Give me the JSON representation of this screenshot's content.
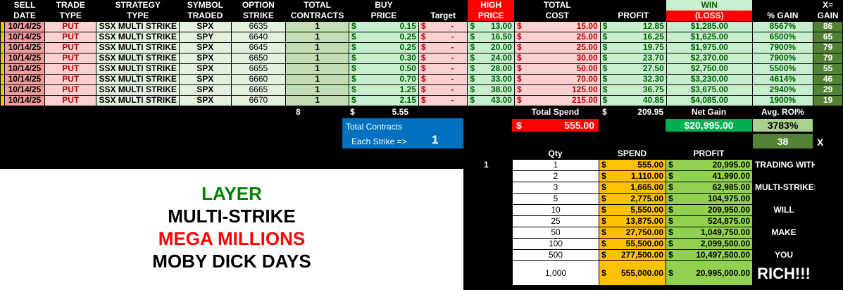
{
  "headers": {
    "sell_date": [
      "SELL",
      "DATE"
    ],
    "trade_type": [
      "TRADE",
      "TYPE"
    ],
    "strategy_type": [
      "STRATEGY",
      "TYPE"
    ],
    "symbol": [
      "SYMBOL",
      "TRADED"
    ],
    "strike": [
      "OPTION",
      "STRIKE"
    ],
    "contracts": [
      "TOTAL",
      "CONTRACTS"
    ],
    "buy_price": [
      "BUY",
      "PRICE"
    ],
    "target": "Target",
    "high_price": [
      "HIGH",
      "PRICE"
    ],
    "total_cost": [
      "TOTAL",
      "COST"
    ],
    "profit": "PROFIT",
    "win": "WIN",
    "loss": "(LOSS)",
    "pct_gain": "% GAIN",
    "x_gain": [
      "X=",
      "GAIN"
    ]
  },
  "rows": [
    {
      "date": "10/14/25",
      "type": "PUT",
      "strategy": "SSX MULTI STRIKE",
      "symbol": "SPX",
      "strike": "6635",
      "contracts": "1",
      "buy": "0.15",
      "target": "-",
      "high": "13.00",
      "cost": "15.00",
      "profit": "12.85",
      "win": "$1,285.00",
      "pct": "8567%",
      "x": "86"
    },
    {
      "date": "10/14/25",
      "type": "PUT",
      "strategy": "SSX MULTI STRIKE",
      "symbol": "SPY",
      "strike": "6640",
      "contracts": "1",
      "buy": "0.25",
      "target": "-",
      "high": "16.50",
      "cost": "25.00",
      "profit": "16.25",
      "win": "$1,625.00",
      "pct": "6500%",
      "x": "65"
    },
    {
      "date": "10/14/25",
      "type": "PUT",
      "strategy": "SSX MULTI STRIKE",
      "symbol": "SPX",
      "strike": "6645",
      "contracts": "1",
      "buy": "0.25",
      "target": "-",
      "high": "20.00",
      "cost": "25.00",
      "profit": "19.75",
      "win": "$1,975.00",
      "pct": "7900%",
      "x": "79"
    },
    {
      "date": "10/14/25",
      "type": "PUT",
      "strategy": "SSX MULTI STRIKE",
      "symbol": "SPX",
      "strike": "6650",
      "contracts": "1",
      "buy": "0.30",
      "target": "-",
      "high": "24.00",
      "cost": "30.00",
      "profit": "23.70",
      "win": "$2,370.00",
      "pct": "7900%",
      "x": "79"
    },
    {
      "date": "10/14/25",
      "type": "PUT",
      "strategy": "SSX MULTI STRIKE",
      "symbol": "SPX",
      "strike": "6655",
      "contracts": "1",
      "buy": "0.50",
      "target": "-",
      "high": "28.00",
      "cost": "50.00",
      "profit": "27.50",
      "win": "$2,750.00",
      "pct": "5500%",
      "x": "55"
    },
    {
      "date": "10/14/25",
      "type": "PUT",
      "strategy": "SSX MULTI STRIKE",
      "symbol": "SPX",
      "strike": "6660",
      "contracts": "1",
      "buy": "0.70",
      "target": "-",
      "high": "33.00",
      "cost": "70.00",
      "profit": "32.30",
      "win": "$3,230.00",
      "pct": "4614%",
      "x": "46"
    },
    {
      "date": "10/14/25",
      "type": "PUT",
      "strategy": "SSX MULTI STRIKE",
      "symbol": "SPX",
      "strike": "6665",
      "contracts": "1",
      "buy": "1.25",
      "target": "-",
      "high": "38.00",
      "cost": "125.00",
      "profit": "36.75",
      "win": "$3,675.00",
      "pct": "2940%",
      "x": "29"
    },
    {
      "date": "10/14/25",
      "type": "PUT",
      "strategy": "SSX MULTI STRIKE",
      "symbol": "SPX",
      "strike": "6670",
      "contracts": "1",
      "buy": "2.15",
      "target": "-",
      "high": "43.00",
      "cost": "215.00",
      "profit": "40.85",
      "win": "$4,085.00",
      "pct": "1900%",
      "x": "19"
    }
  ],
  "currency": "$",
  "totals": {
    "contracts": "8",
    "buy": "5.55",
    "total_spend_label": "Total Spend",
    "profit": "209.95",
    "net_gain_label": "Net Gain",
    "avg_roi_label": "Avg. ROI%"
  },
  "summary": {
    "spend": "555.00",
    "net_gain": "$20,995.00",
    "avg_roi": "3783%",
    "x_value": "38",
    "x_label": "X"
  },
  "blue_box": {
    "title": "Total Contracts",
    "each_label": "Each Strike =>",
    "each_value": "1"
  },
  "qty_table": {
    "headers": {
      "qty": "Qty",
      "spend": "SPEND",
      "profit": "PROFIT"
    },
    "marker": "1",
    "rows": [
      {
        "qty": "1",
        "spend": "555.00",
        "profit": "20,995.00",
        "note": "TRADING WITH"
      },
      {
        "qty": "2",
        "spend": "1,110.00",
        "profit": "41,990.00",
        "note": ""
      },
      {
        "qty": "3",
        "spend": "1,665.00",
        "profit": "62,985.00",
        "note": "MULTI-STRIKES"
      },
      {
        "qty": "5",
        "spend": "2,775.00",
        "profit": "104,975.00",
        "note": ""
      },
      {
        "qty": "10",
        "spend": "5,550.00",
        "profit": "209,950.00",
        "note": "WILL"
      },
      {
        "qty": "25",
        "spend": "13,875.00",
        "profit": "524,875.00",
        "note": ""
      },
      {
        "qty": "50",
        "spend": "27,750.00",
        "profit": "1,049,750.00",
        "note": "MAKE"
      },
      {
        "qty": "100",
        "spend": "55,500.00",
        "profit": "2,099,500.00",
        "note": ""
      },
      {
        "qty": "500",
        "spend": "277,500.00",
        "profit": "10,497,500.00",
        "note": "YOU"
      },
      {
        "qty": "1,000",
        "spend": "555,000.00",
        "profit": "20,995,000.00",
        "note": "RICH!!!"
      }
    ]
  },
  "banner": {
    "line1": "LAYER",
    "line2": "MULTI-STRIKE",
    "line3": "MEGA MILLIONS",
    "line4": "MOBY DICK DAYS"
  },
  "colors": {
    "green": "#008000",
    "red": "#ff0000",
    "black": "#000000",
    "blue": "#0070c0"
  }
}
